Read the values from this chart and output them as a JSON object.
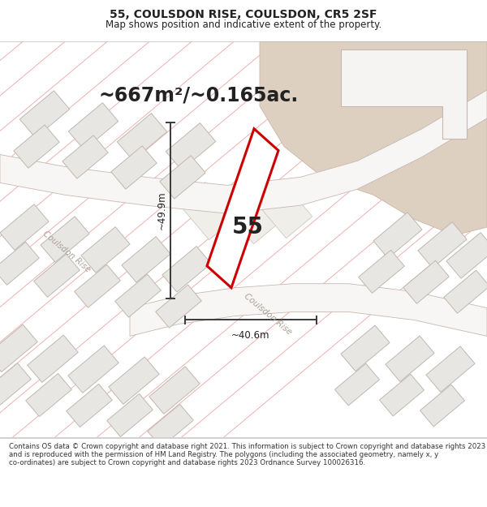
{
  "title_line1": "55, COULSDON RISE, COULSDON, CR5 2SF",
  "title_line2": "Map shows position and indicative extent of the property.",
  "area_text": "~667m²/~0.165ac.",
  "label_55": "55",
  "dim_vertical": "~49.9m",
  "dim_horizontal": "~40.6m",
  "road_label": "Coulsdon Rise",
  "footer_text": "Contains OS data © Crown copyright and database right 2021. This information is subject to Crown copyright and database rights 2023 and is reproduced with the permission of HM Land Registry. The polygons (including the associated geometry, namely x, y co-ordinates) are subject to Crown copyright and database rights 2023 Ordnance Survey 100026316.",
  "map_bg": "#f7f6f4",
  "plot_outline_color": "#cc0000",
  "dim_line_color": "#3a3a3a",
  "road_line_color": "#f0b0b0",
  "road_outline_color": "#c8b8b0",
  "building_fill": "#e8e6e3",
  "building_edge": "#c0b8b0",
  "text_color": "#222222",
  "road_text_color": "#aaa098",
  "tan_fill": "#ddd0c0",
  "tan_edge": "#c8b8a8",
  "white_bld": "#f5f4f2",
  "title_fontsize": 10,
  "subtitle_fontsize": 8.5,
  "area_fontsize": 17,
  "label55_fontsize": 20,
  "dim_fontsize": 8.5,
  "road_fontsize": 7.5,
  "footer_fontsize": 6.2
}
